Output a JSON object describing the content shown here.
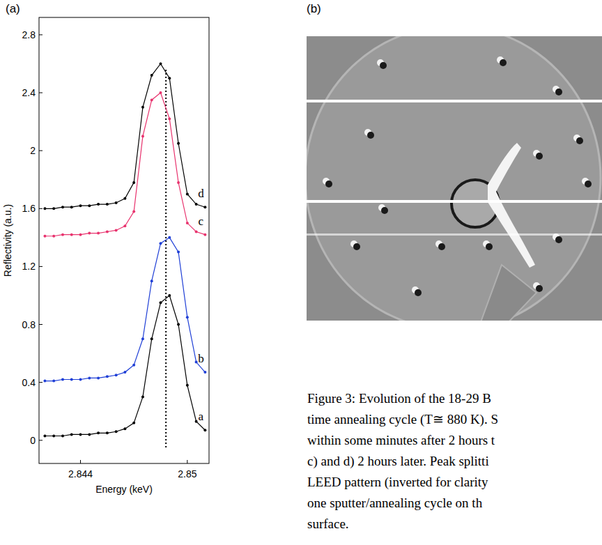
{
  "chart_data": {
    "type": "line",
    "x_label": "Energy (keV)",
    "y_label": "Reflectivity (a.u.)",
    "x": [
      2.842,
      2.8425,
      2.843,
      2.8435,
      2.844,
      2.8445,
      2.845,
      2.8455,
      2.846,
      2.8465,
      2.847,
      2.8475,
      2.848,
      2.8485,
      2.849,
      2.8495,
      2.85,
      2.8505,
      2.851
    ],
    "series": [
      {
        "name": "a",
        "color": "#000000",
        "marker": "circle",
        "line_style": "solid",
        "values": [
          0.03,
          0.03,
          0.03,
          0.04,
          0.04,
          0.04,
          0.05,
          0.05,
          0.06,
          0.08,
          0.12,
          0.3,
          0.7,
          0.95,
          1.0,
          0.8,
          0.38,
          0.13,
          0.07
        ]
      },
      {
        "name": "b",
        "color": "#1f3fd6",
        "marker": "circle",
        "line_style": "solid",
        "values": [
          0.41,
          0.41,
          0.42,
          0.42,
          0.42,
          0.43,
          0.43,
          0.44,
          0.45,
          0.47,
          0.52,
          0.7,
          1.1,
          1.36,
          1.4,
          1.3,
          0.85,
          0.54,
          0.47
        ]
      },
      {
        "name": "c",
        "color": "#e8336e",
        "marker": "circle",
        "line_style": "solid",
        "values": [
          1.41,
          1.41,
          1.42,
          1.42,
          1.42,
          1.43,
          1.43,
          1.44,
          1.45,
          1.48,
          1.58,
          2.1,
          2.35,
          2.4,
          2.22,
          1.78,
          1.5,
          1.44,
          1.42
        ]
      },
      {
        "name": "d",
        "color": "#000000",
        "marker": "circle",
        "line_style": "solid",
        "values": [
          1.6,
          1.6,
          1.61,
          1.61,
          1.62,
          1.62,
          1.63,
          1.63,
          1.64,
          1.67,
          1.78,
          2.3,
          2.52,
          2.6,
          2.5,
          2.05,
          1.7,
          1.63,
          1.61
        ]
      }
    ],
    "xlim": [
      2.84167,
      2.85122
    ],
    "ylim": [
      -0.16,
      2.92
    ],
    "xticks": [
      2.844,
      2.85
    ],
    "yticks": [
      0,
      0.4,
      0.8,
      1.2,
      1.6,
      2,
      2.4,
      2.8
    ],
    "vline": {
      "x": 2.8488,
      "line_style": "dotted"
    }
  },
  "panels": [
    "(a)",
    "(b)"
  ],
  "caption": [
    "Figure 3: Evolution of the 18-29 B",
    "time annealing cycle (T≅ 880 K). S",
    "within some minutes after 2 hours t",
    "c) and d) 2 hours later. Peak splitti",
    "LEED pattern (inverted for clarity",
    "one sputter/annealing cycle on th",
    "surface."
  ]
}
